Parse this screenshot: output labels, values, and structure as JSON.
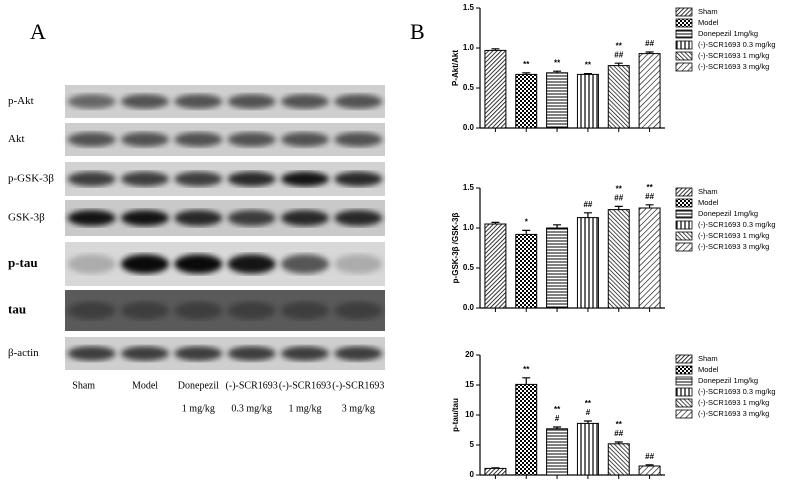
{
  "panel_a": {
    "label": "A",
    "rows": [
      "p-Akt",
      "Akt",
      "p-GSK-3β",
      "GSK-3β",
      "p-tau",
      "tau",
      "β-actin"
    ],
    "lanes": [
      [
        "Sham"
      ],
      [
        "Model"
      ],
      [
        "Donepezil",
        "1 mg/kg"
      ],
      [
        "(-)-SCR1693",
        "0.3 mg/kg"
      ],
      [
        "(-)-SCR1693",
        "1 mg/kg"
      ],
      [
        "(-)-SCR1693",
        "3 mg/kg"
      ]
    ]
  },
  "panel_b_label": "B",
  "chart_data": [
    {
      "type": "bar",
      "ylabel": "P-Akt/Akt",
      "categories": [
        "Sham",
        "Model",
        "Donepezil 1mg/kg",
        "(-)-SCR1693 0.3 mg/kg",
        "(-)-SCR1693 1 mg/kg",
        "(-)-SCR1693 3 mg/kg"
      ],
      "values": [
        0.97,
        0.67,
        0.69,
        0.67,
        0.78,
        0.93
      ],
      "errors": [
        0.02,
        0.02,
        0.02,
        0.01,
        0.03,
        0.02
      ],
      "significance": [
        null,
        [
          "**"
        ],
        [
          "**"
        ],
        [
          "**"
        ],
        [
          "**",
          "##"
        ],
        [
          "##"
        ]
      ],
      "ylim": [
        0,
        1.5
      ],
      "yticks": [
        {
          "value": 0,
          "label": "0.0"
        },
        {
          "value": 0.5,
          "label": "0.5"
        },
        {
          "value": 1,
          "label": "1.0"
        },
        {
          "value": 1.5,
          "label": "1.5"
        }
      ],
      "legend": "right"
    },
    {
      "type": "bar",
      "ylabel": "p-GSK-3β /GSK-3β",
      "categories": [
        "Sham",
        "Model",
        "Donepezil 1mg/kg",
        "(-)-SCR1693 0.3 mg/kg",
        "(-)-SCR1693 1 mg/kg",
        "(-)-SCR1693 3 mg/kg"
      ],
      "values": [
        1.05,
        0.92,
        1.0,
        1.13,
        1.23,
        1.25
      ],
      "errors": [
        0.02,
        0.05,
        0.04,
        0.06,
        0.04,
        0.04
      ],
      "significance": [
        null,
        [
          "*"
        ],
        null,
        [
          "##"
        ],
        [
          "**",
          "##"
        ],
        [
          "**",
          "##"
        ]
      ],
      "ylim": [
        0,
        1.5
      ],
      "yticks": [
        {
          "value": 0,
          "label": "0.0"
        },
        {
          "value": 0.5,
          "label": "0.5"
        },
        {
          "value": 1,
          "label": "1.0"
        },
        {
          "value": 1.5,
          "label": "1.5"
        }
      ],
      "legend": "right"
    },
    {
      "type": "bar",
      "ylabel": "p-tau/tau",
      "categories": [
        "Sham",
        "Model",
        "Donepezil 1mg/kg",
        "(-)-SCR1693 0.3 mg/kg",
        "(-)-SCR1693 1 mg/kg",
        "(-)-SCR1693 3 mg/kg"
      ],
      "values": [
        1.1,
        15.1,
        7.7,
        8.6,
        5.2,
        1.5
      ],
      "errors": [
        0.1,
        1.1,
        0.3,
        0.4,
        0.3,
        0.2
      ],
      "significance": [
        null,
        [
          "**"
        ],
        [
          "**",
          "#"
        ],
        [
          "**",
          "#"
        ],
        [
          "**",
          "##"
        ],
        [
          "##"
        ]
      ],
      "ylim": [
        0,
        20
      ],
      "yticks": [
        0,
        5,
        10,
        15,
        20
      ],
      "legend": "right"
    }
  ]
}
